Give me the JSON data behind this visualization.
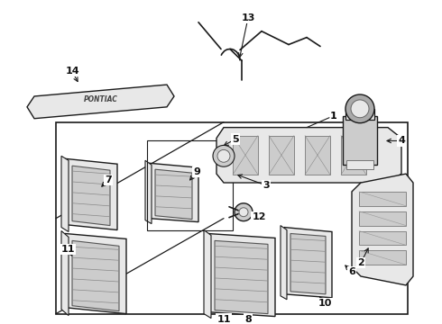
{
  "bg_color": "#ffffff",
  "fig_width": 4.9,
  "fig_height": 3.6,
  "dpi": 100,
  "line_color": "#1a1a1a",
  "gray_light": "#e8e8e8",
  "gray_mid": "#cccccc",
  "gray_dark": "#aaaaaa"
}
